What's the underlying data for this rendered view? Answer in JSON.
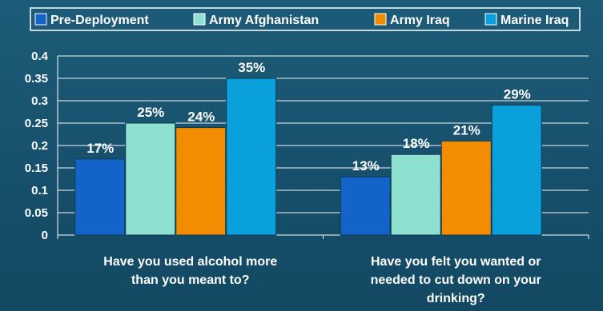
{
  "chart_data": {
    "type": "bar",
    "categories": [
      [
        "Have you used alcohol more",
        "than you meant to?"
      ],
      [
        "Have you felt you wanted or",
        "needed to cut down on your",
        "drinking?"
      ]
    ],
    "series": [
      {
        "name": "Pre-Deployment",
        "values": [
          0.17,
          0.13
        ],
        "labels": [
          "17%",
          "13%"
        ],
        "color": "#1463c8"
      },
      {
        "name": "Army Afghanistan",
        "values": [
          0.25,
          0.18
        ],
        "labels": [
          "25%",
          "18%"
        ],
        "color": "#8ee0d0"
      },
      {
        "name": "Army Iraq",
        "values": [
          0.24,
          0.21
        ],
        "labels": [
          "24%",
          "21%"
        ],
        "color": "#f28c00"
      },
      {
        "name": "Marine Iraq",
        "values": [
          0.35,
          0.29
        ],
        "labels": [
          "35%",
          "29%"
        ],
        "color": "#0aa0dc"
      }
    ],
    "yticks": [
      "0",
      "0.05",
      "0.1",
      "0.15",
      "0.2",
      "0.25",
      "0.3",
      "0.35",
      "0.4"
    ],
    "ylim": [
      0,
      0.4
    ],
    "grid": true,
    "legend": "top"
  }
}
